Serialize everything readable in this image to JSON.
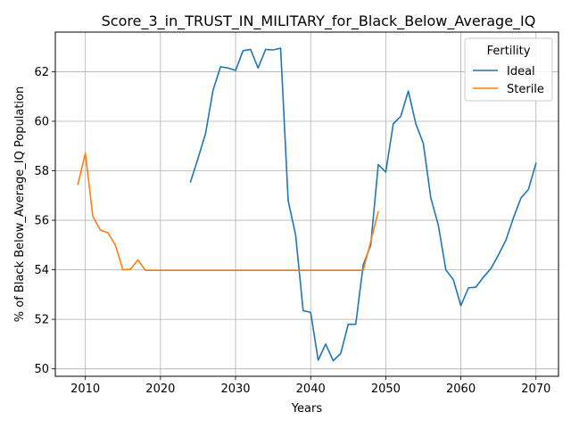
{
  "chart_data": {
    "type": "line",
    "title": "Score_3_in_TRUST_IN_MILITARY_for_Black_Below_Average_IQ",
    "xlabel": "Years",
    "ylabel": "% of Black Below_Average_IQ Population",
    "xlim": [
      2006,
      2073
    ],
    "ylim": [
      49.7,
      63.6
    ],
    "xticks": [
      2010,
      2020,
      2030,
      2040,
      2050,
      2060,
      2070
    ],
    "yticks": [
      50,
      52,
      54,
      56,
      58,
      60,
      62
    ],
    "grid": true,
    "legend": {
      "title": "Fertility",
      "placement": "top-right"
    },
    "series": [
      {
        "name": "Ideal",
        "color": "#1f77b4",
        "x": [
          2024,
          2025,
          2026,
          2027,
          2028,
          2029,
          2030,
          2031,
          2032,
          2033,
          2034,
          2035,
          2036,
          2037,
          2038,
          2039,
          2040,
          2041,
          2042,
          2043,
          2044,
          2045,
          2046,
          2047,
          2048,
          2049,
          2050,
          2051,
          2052,
          2053,
          2054,
          2055,
          2056,
          2057,
          2058,
          2059,
          2060,
          2061,
          2062,
          2063,
          2064,
          2065,
          2066,
          2067,
          2068,
          2069,
          2070
        ],
        "values": [
          57.55,
          58.5,
          59.5,
          61.25,
          62.2,
          62.15,
          62.05,
          62.85,
          62.9,
          62.15,
          62.9,
          62.88,
          62.95,
          56.8,
          55.4,
          52.35,
          52.28,
          50.35,
          51.0,
          50.33,
          50.62,
          51.8,
          51.8,
          54.2,
          55.0,
          58.25,
          57.95,
          59.9,
          60.2,
          61.22,
          59.9,
          59.1,
          56.9,
          55.8,
          54.0,
          53.6,
          52.55,
          53.27,
          53.3,
          53.7,
          54.05,
          54.6,
          55.2,
          56.1,
          56.9,
          57.25,
          58.3
        ]
      },
      {
        "name": "Sterile",
        "color": "#ff7f0e",
        "x": [
          2009,
          2010,
          2011,
          2012,
          2013,
          2014,
          2015,
          2016,
          2017,
          2018,
          2019,
          2020,
          2021,
          2022,
          2023,
          2024,
          2025,
          2026,
          2027,
          2028,
          2029,
          2030,
          2031,
          2032,
          2033,
          2034,
          2035,
          2036,
          2037,
          2038,
          2039,
          2040,
          2041,
          2042,
          2043,
          2044,
          2045,
          2046,
          2047,
          2048,
          2049
        ],
        "values": [
          57.45,
          58.7,
          56.15,
          55.6,
          55.5,
          55.0,
          54.0,
          54.02,
          54.4,
          53.98,
          53.98,
          53.98,
          53.98,
          53.98,
          53.98,
          53.98,
          53.98,
          53.98,
          53.98,
          53.98,
          53.98,
          53.98,
          53.98,
          53.98,
          53.98,
          53.98,
          53.98,
          53.98,
          53.98,
          53.98,
          53.98,
          53.98,
          53.98,
          53.98,
          53.98,
          53.98,
          53.98,
          53.98,
          53.98,
          55.15,
          56.35
        ]
      }
    ]
  }
}
